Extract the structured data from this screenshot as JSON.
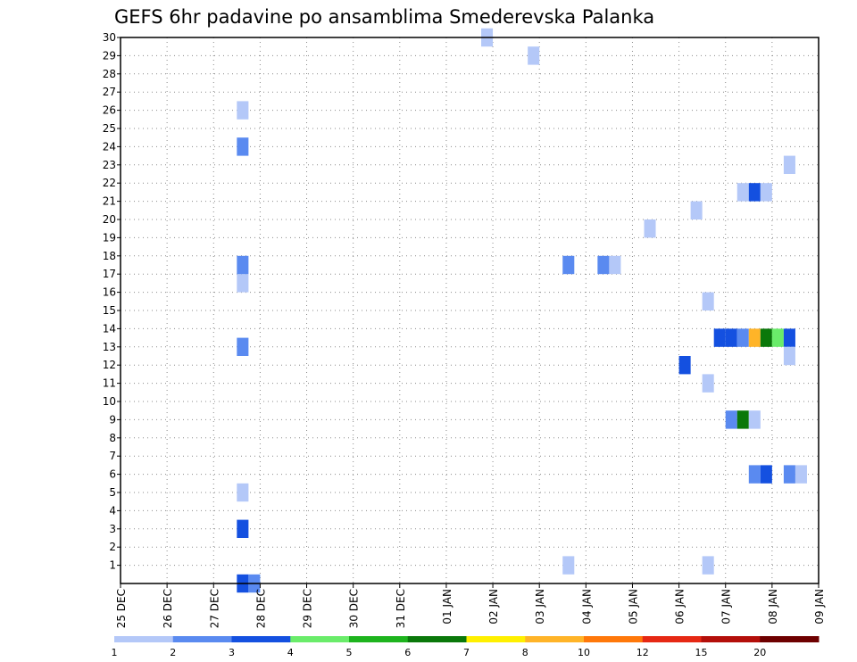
{
  "chart_data": {
    "type": "heatmap",
    "title": "GEFS 6hr padavine po ansamblima Smederevska Palanka",
    "xlabel": "",
    "ylabel": "",
    "x_ticks": [
      "25 DEC",
      "26 DEC",
      "27 DEC",
      "28 DEC",
      "29 DEC",
      "30 DEC",
      "31 DEC",
      "01 JAN",
      "02 JAN",
      "03 JAN",
      "04 JAN",
      "05 JAN",
      "06 JAN",
      "07 JAN",
      "08 JAN",
      "09 JAN"
    ],
    "x_range_days": [
      0,
      15
    ],
    "y_ticks": [
      "1",
      "2",
      "3",
      "4",
      "5",
      "6",
      "7",
      "8",
      "9",
      "10",
      "11",
      "12",
      "13",
      "14",
      "15",
      "16",
      "17",
      "18",
      "19",
      "20",
      "21",
      "22",
      "23",
      "24",
      "25",
      "26",
      "27",
      "28",
      "29",
      "30"
    ],
    "y_range": [
      0,
      30
    ],
    "grid": true,
    "colorbar": {
      "labels": [
        "1",
        "2",
        "3",
        "4",
        "5",
        "6",
        "7",
        "8",
        "10",
        "12",
        "15",
        "20"
      ],
      "colors": [
        "#b4c8f8",
        "#5a8af0",
        "#1450e0",
        "#6aec6a",
        "#1eb41e",
        "#0a780a",
        "#fff000",
        "#ffb428",
        "#ff780a",
        "#e62814",
        "#b40f0a",
        "#6e0000"
      ]
    },
    "cells": [
      {
        "x": 2.5,
        "y": 0,
        "v": 3
      },
      {
        "x": 2.75,
        "y": 0,
        "v": 2
      },
      {
        "x": 2.5,
        "y": 3,
        "v": 3
      },
      {
        "x": 2.5,
        "y": 5,
        "v": 1
      },
      {
        "x": 2.5,
        "y": 13,
        "v": 2
      },
      {
        "x": 2.5,
        "y": 16.5,
        "v": 1
      },
      {
        "x": 2.5,
        "y": 17.5,
        "v": 2
      },
      {
        "x": 2.5,
        "y": 24,
        "v": 2
      },
      {
        "x": 2.5,
        "y": 26,
        "v": 1
      },
      {
        "x": 7.75,
        "y": 30,
        "v": 1
      },
      {
        "x": 8.75,
        "y": 29,
        "v": 1
      },
      {
        "x": 9.5,
        "y": 1,
        "v": 1
      },
      {
        "x": 9.5,
        "y": 17.5,
        "v": 2
      },
      {
        "x": 10.25,
        "y": 17.5,
        "v": 2
      },
      {
        "x": 10.5,
        "y": 17.5,
        "v": 1
      },
      {
        "x": 11.25,
        "y": 19.5,
        "v": 1
      },
      {
        "x": 12,
        "y": 12,
        "v": 3
      },
      {
        "x": 12.25,
        "y": 20.5,
        "v": 1
      },
      {
        "x": 12.5,
        "y": 1,
        "v": 1
      },
      {
        "x": 12.5,
        "y": 11,
        "v": 1
      },
      {
        "x": 12.5,
        "y": 15.5,
        "v": 1
      },
      {
        "x": 12.75,
        "y": 13.5,
        "v": 3
      },
      {
        "x": 13,
        "y": 13.5,
        "v": 3
      },
      {
        "x": 13,
        "y": 9,
        "v": 2
      },
      {
        "x": 13.25,
        "y": 9,
        "v": 6
      },
      {
        "x": 13.5,
        "y": 9,
        "v": 1
      },
      {
        "x": 13.25,
        "y": 13.5,
        "v": 2
      },
      {
        "x": 13.5,
        "y": 13.5,
        "v": 8
      },
      {
        "x": 13.75,
        "y": 13.5,
        "v": 6
      },
      {
        "x": 14,
        "y": 13.5,
        "v": 4
      },
      {
        "x": 14.25,
        "y": 13.5,
        "v": 3
      },
      {
        "x": 13.25,
        "y": 21.5,
        "v": 1
      },
      {
        "x": 13.5,
        "y": 21.5,
        "v": 3
      },
      {
        "x": 13.75,
        "y": 21.5,
        "v": 1
      },
      {
        "x": 13.5,
        "y": 6,
        "v": 2
      },
      {
        "x": 13.75,
        "y": 6,
        "v": 3
      },
      {
        "x": 14.25,
        "y": 6,
        "v": 2
      },
      {
        "x": 14.5,
        "y": 6,
        "v": 1
      },
      {
        "x": 14.25,
        "y": 12.5,
        "v": 1
      },
      {
        "x": 14.25,
        "y": 23,
        "v": 1
      }
    ]
  }
}
